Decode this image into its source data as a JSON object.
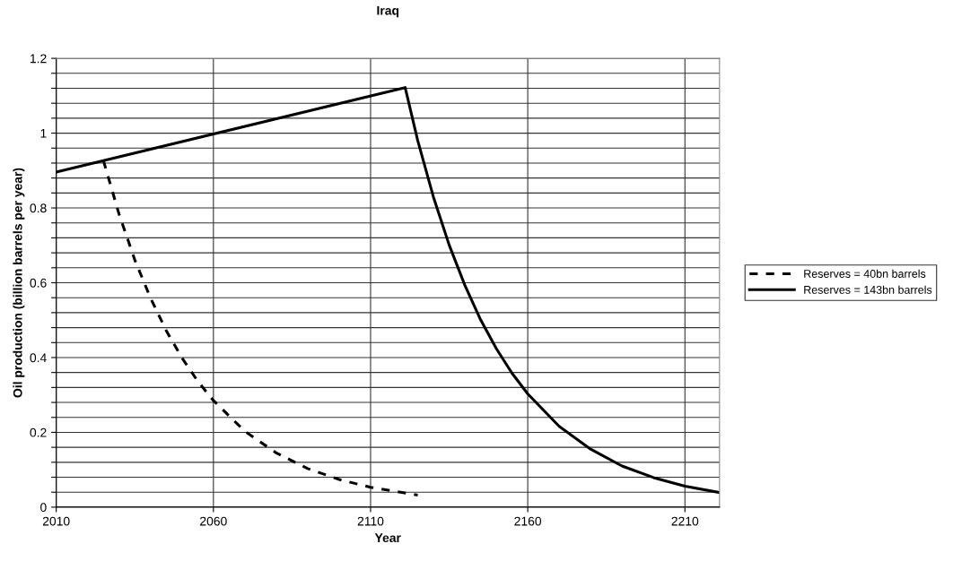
{
  "chart_data": {
    "type": "line",
    "title": "Iraq",
    "xlabel": "Year",
    "ylabel": "Oil production (billion barrels per year)",
    "xlim": [
      2010,
      2221
    ],
    "xticks": [
      2010,
      2060,
      2110,
      2160,
      2210
    ],
    "ylim": [
      0,
      1.2
    ],
    "yticks": [
      0,
      {
        "value": 0.04,
        "label": null
      },
      {
        "value": 0.08,
        "label": null
      },
      {
        "value": 0.12,
        "label": null
      },
      {
        "value": 0.16,
        "label": null
      },
      0.2,
      {
        "value": 0.24,
        "label": null
      },
      {
        "value": 0.28,
        "label": null
      },
      {
        "value": 0.32,
        "label": null
      },
      {
        "value": 0.36,
        "label": null
      },
      0.4,
      {
        "value": 0.44,
        "label": null
      },
      {
        "value": 0.48,
        "label": null
      },
      {
        "value": 0.52,
        "label": null
      },
      {
        "value": 0.56,
        "label": null
      },
      0.6,
      {
        "value": 0.64,
        "label": null
      },
      {
        "value": 0.68,
        "label": null
      },
      {
        "value": 0.72,
        "label": null
      },
      {
        "value": 0.76,
        "label": null
      },
      0.8,
      {
        "value": 0.84,
        "label": null
      },
      {
        "value": 0.88,
        "label": null
      },
      {
        "value": 0.92,
        "label": null
      },
      {
        "value": 0.96,
        "label": null
      },
      1,
      {
        "value": 1.04,
        "label": null
      },
      {
        "value": 1.08,
        "label": null
      },
      {
        "value": 1.12,
        "label": null
      },
      {
        "value": 1.16,
        "label": null
      },
      1.2
    ],
    "grid": true,
    "legend": "right",
    "marker": "none",
    "series": [
      {
        "name": "Reserves = 40bn barrels",
        "color": "#000000",
        "line_style": "dashed",
        "x": [
          2025,
          2030,
          2035,
          2040,
          2045,
          2050,
          2055,
          2060,
          2070,
          2080,
          2090,
          2100,
          2110,
          2125
        ],
        "values": [
          0.927,
          0.783,
          0.661,
          0.559,
          0.472,
          0.399,
          0.337,
          0.285,
          0.203,
          0.145,
          0.103,
          0.074,
          0.053,
          0.032
        ]
      },
      {
        "name": "Reserves = 143bn barrels",
        "color": "#000000",
        "line_style": "solid",
        "x": [
          2010,
          2121,
          2125,
          2130,
          2135,
          2140,
          2145,
          2150,
          2155,
          2160,
          2170,
          2180,
          2190,
          2200,
          2210,
          2221
        ],
        "values": [
          0.896,
          1.122,
          0.98,
          0.829,
          0.701,
          0.593,
          0.501,
          0.424,
          0.358,
          0.303,
          0.216,
          0.155,
          0.11,
          0.079,
          0.056,
          0.039
        ]
      }
    ]
  }
}
